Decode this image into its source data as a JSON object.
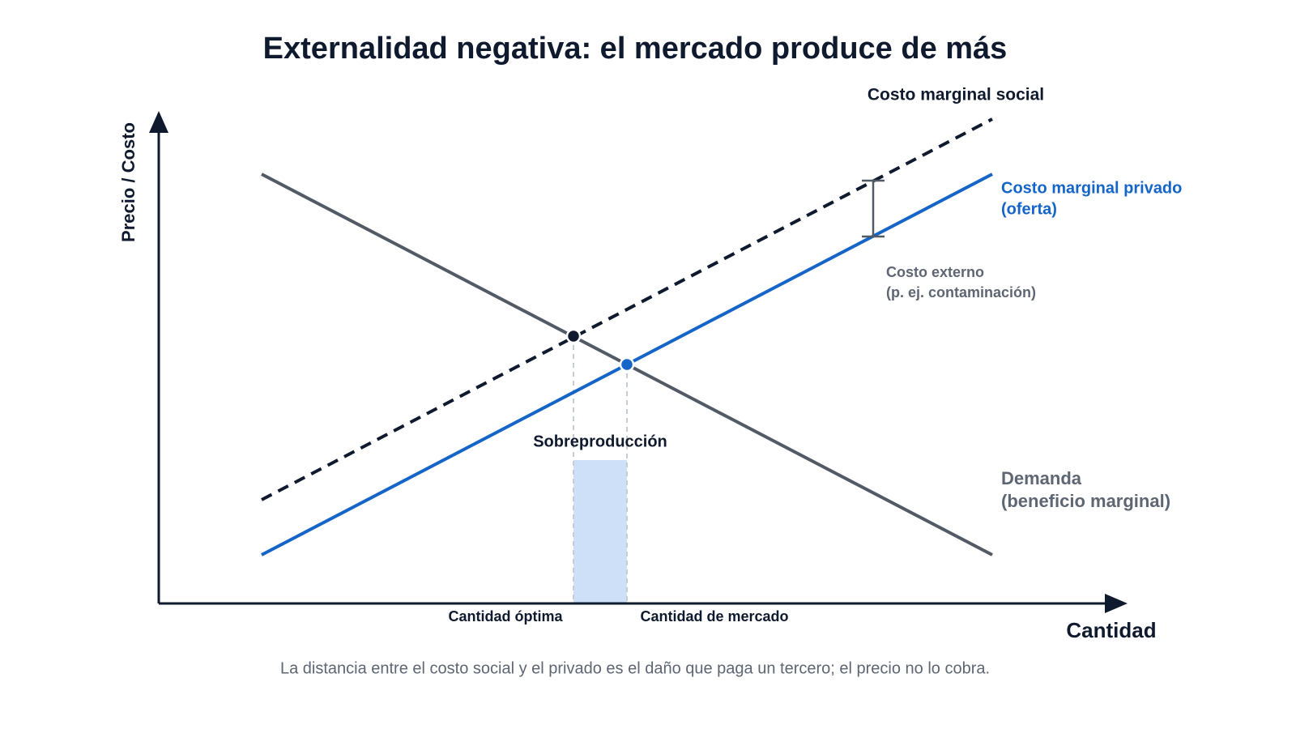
{
  "header": {
    "title": "Externalidad negativa: el mercado produce de más"
  },
  "axes": {
    "y_label": "Precio / Costo",
    "x_label": "Cantidad"
  },
  "curves": {
    "social_cost": [
      "Costo marginal social"
    ],
    "private_cost": [
      "Costo marginal privado",
      "(oferta)"
    ],
    "demand": [
      "Demanda",
      "(beneficio marginal)"
    ]
  },
  "annotations": {
    "external_cost": [
      "Costo externo",
      "(p. ej. contaminación)"
    ],
    "overproduction": "Sobreproducción",
    "optimal_quantity": "Cantidad óptima",
    "market_quantity": "Cantidad de mercado"
  },
  "caption": "La distancia entre el costo social y el privado es el daño que paga un tercero; el precio no lo cobra."
}
